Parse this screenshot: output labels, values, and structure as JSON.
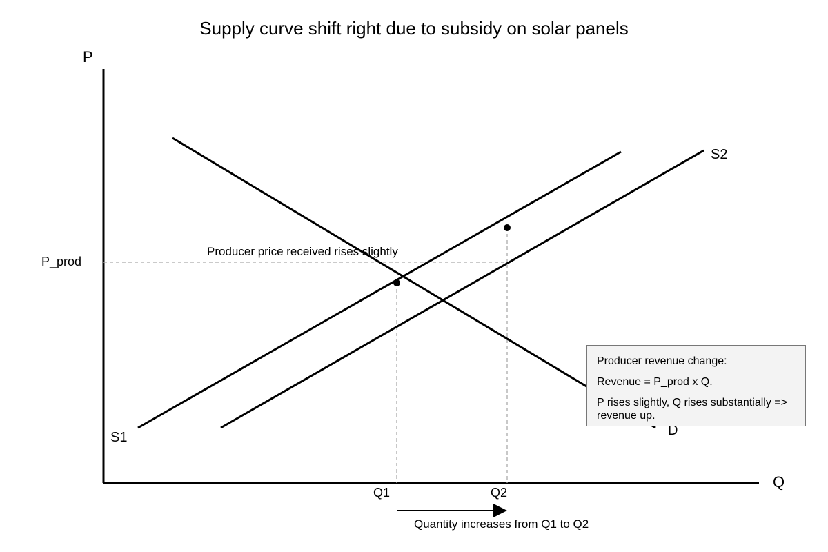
{
  "title": "Supply curve shift right due to subsidy on solar panels",
  "axes": {
    "y_label": "P",
    "x_label": "Q"
  },
  "curves": {
    "s1_label": "S1",
    "s2_label": "S2",
    "d_label": "D"
  },
  "price_label": "P_prod",
  "price_note": "Producer price received rises slightly",
  "quantity_labels": {
    "q1": "Q1",
    "q2": "Q2"
  },
  "quantity_note": "Quantity increases from Q1 to Q2",
  "note_box": {
    "heading": "Producer revenue change:",
    "line1": "Revenue = P_prod x Q.",
    "line2": "P rises slightly, Q rises substantially => revenue up."
  }
}
